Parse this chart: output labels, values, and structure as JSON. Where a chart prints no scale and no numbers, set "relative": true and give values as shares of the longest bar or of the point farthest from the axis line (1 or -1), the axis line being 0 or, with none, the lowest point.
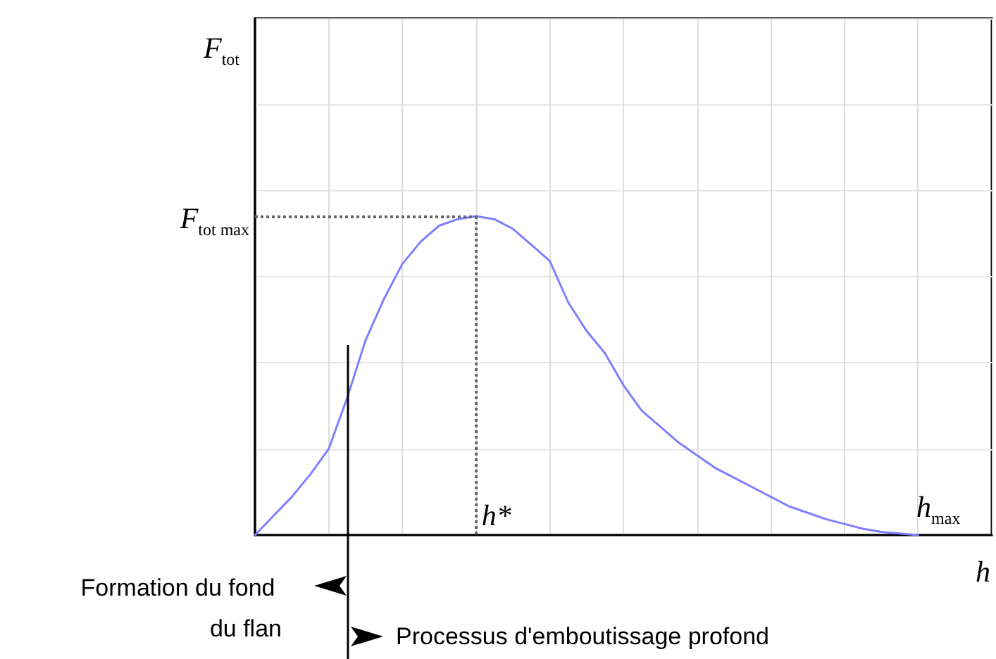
{
  "chart_data": {
    "type": "line",
    "relative": true,
    "grid": true,
    "marker": "none",
    "categories": [
      null,
      null,
      null,
      null,
      null,
      null,
      null,
      null,
      null,
      null,
      null,
      null,
      null,
      null,
      null,
      null,
      null,
      null,
      null,
      null,
      null,
      null,
      null,
      null,
      null,
      null,
      null,
      null,
      null,
      null,
      null,
      null,
      null,
      null,
      null,
      null,
      null,
      null,
      null,
      null,
      null
    ],
    "series": [
      {
        "color": "#7f7fff",
        "values": [
          0,
          0.06,
          0.12,
          0.19,
          0.27,
          0.43,
          0.61,
          0.74,
          0.85,
          0.92,
          0.97,
          0.99,
          1,
          0.99,
          0.96,
          0.91,
          0.86,
          0.73,
          0.64,
          0.57,
          0.47,
          0.39,
          0.34,
          0.29,
          0.25,
          0.21,
          0.18,
          0.15,
          0.12,
          0.09,
          0.07,
          0.05,
          0.035,
          0.02,
          0.01,
          0.005,
          0,
          null,
          null,
          null,
          null
        ]
      }
    ],
    "ylabel": "F$_{tot}$",
    "xlabel": "h",
    "ref_lines": [
      {
        "axis": "y",
        "value": 1,
        "label": "F$_{tot max}$",
        "line_style": "dotted",
        "color": "#666666"
      }
    ],
    "annotations": [
      "h*",
      "h$_{max}$",
      "Formation du fond du flan",
      "Processus d'emboutissage profond"
    ]
  }
}
